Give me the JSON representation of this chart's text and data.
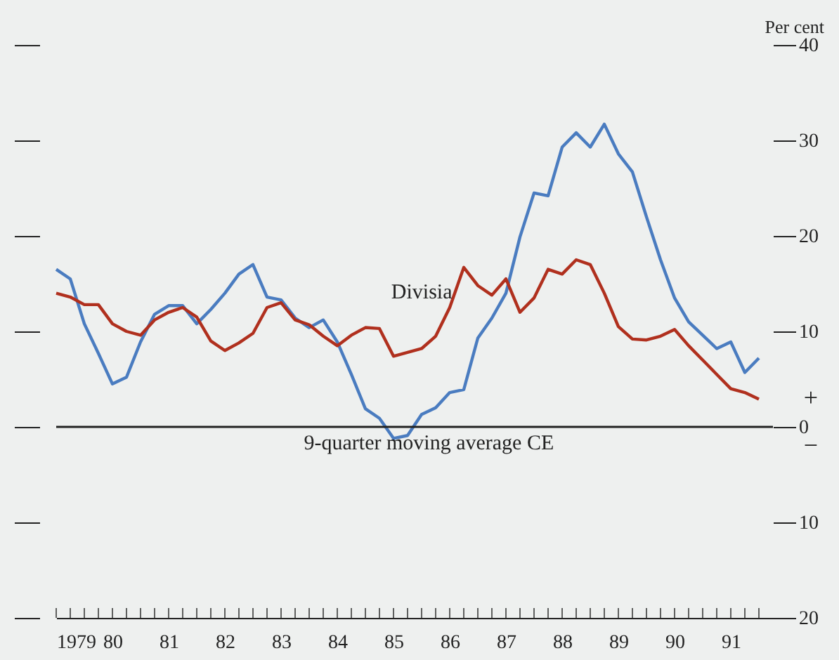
{
  "chart_data": {
    "type": "line",
    "ylabel": "Per cent",
    "x": [
      1979,
      1979.25,
      1979.5,
      1979.75,
      1980,
      1980.25,
      1980.5,
      1980.75,
      1981,
      1981.25,
      1981.5,
      1981.75,
      1982,
      1982.25,
      1982.5,
      1982.75,
      1983,
      1983.25,
      1983.5,
      1983.75,
      1984,
      1984.25,
      1984.5,
      1984.75,
      1985,
      1985.25,
      1985.5,
      1985.75,
      1986,
      1986.25,
      1986.5,
      1986.75,
      1987,
      1987.25,
      1987.5,
      1987.75,
      1988,
      1988.25,
      1988.5,
      1988.75,
      1989,
      1989.25,
      1989.5,
      1989.75,
      1990,
      1990.25,
      1990.5,
      1990.75,
      1991,
      1991.25,
      1991.5
    ],
    "series": [
      {
        "color": "#4a7cc0",
        "values": [
          16.5,
          15.5,
          10.8,
          7.7,
          4.5,
          5.2,
          8.9,
          11.8,
          12.7,
          12.7,
          10.8,
          12.3,
          14,
          16,
          17,
          13.6,
          13.3,
          11.4,
          10.4,
          11.2,
          8.9,
          5.5,
          1.9,
          0.9,
          -1.2,
          -0.9,
          1.3,
          2,
          3.6,
          3.9,
          9.3,
          11.4,
          14,
          19.9,
          24.5,
          24.2,
          29.3,
          30.8,
          29.3,
          31.7,
          28.6,
          26.7,
          22,
          17.5,
          13.5,
          11,
          9.6,
          8.2,
          8.9,
          5.7,
          7.2
        ]
      },
      {
        "color": "#b0301e",
        "values": [
          14,
          13.6,
          12.8,
          12.8,
          10.8,
          10,
          9.6,
          11.2,
          12,
          12.5,
          11.5,
          9,
          8,
          8.8,
          9.8,
          12.5,
          13,
          11.2,
          10.7,
          9.5,
          8.5,
          9.6,
          10.4,
          10.3,
          7.4,
          7.8,
          8.2,
          9.5,
          12.5,
          16.7,
          14.8,
          13.8,
          15.5,
          12,
          13.5,
          16.5,
          16,
          17.5,
          17,
          14,
          10.5,
          9.2,
          9.1,
          9.5,
          10.2,
          8.5,
          7,
          5.5,
          4,
          3.6,
          2.9
        ]
      }
    ],
    "xlim": [
      1979,
      1991.75
    ],
    "xticks": [
      {
        "value": 1979,
        "label": "1979"
      },
      {
        "value": 1979.25,
        "label": null
      },
      {
        "value": 1979.5,
        "label": null
      },
      {
        "value": 1979.75,
        "label": null
      },
      {
        "value": 1980,
        "label": "80"
      },
      {
        "value": 1980.25,
        "label": null
      },
      {
        "value": 1980.5,
        "label": null
      },
      {
        "value": 1980.75,
        "label": null
      },
      {
        "value": 1981,
        "label": "81"
      },
      {
        "value": 1981.25,
        "label": null
      },
      {
        "value": 1981.5,
        "label": null
      },
      {
        "value": 1981.75,
        "label": null
      },
      {
        "value": 1982,
        "label": "82"
      },
      {
        "value": 1982.25,
        "label": null
      },
      {
        "value": 1982.5,
        "label": null
      },
      {
        "value": 1982.75,
        "label": null
      },
      {
        "value": 1983,
        "label": "83"
      },
      {
        "value": 1983.25,
        "label": null
      },
      {
        "value": 1983.5,
        "label": null
      },
      {
        "value": 1983.75,
        "label": null
      },
      {
        "value": 1984,
        "label": "84"
      },
      {
        "value": 1984.25,
        "label": null
      },
      {
        "value": 1984.5,
        "label": null
      },
      {
        "value": 1984.75,
        "label": null
      },
      {
        "value": 1985,
        "label": "85"
      },
      {
        "value": 1985.25,
        "label": null
      },
      {
        "value": 1985.5,
        "label": null
      },
      {
        "value": 1985.75,
        "label": null
      },
      {
        "value": 1986,
        "label": "86"
      },
      {
        "value": 1986.25,
        "label": null
      },
      {
        "value": 1986.5,
        "label": null
      },
      {
        "value": 1986.75,
        "label": null
      },
      {
        "value": 1987,
        "label": "87"
      },
      {
        "value": 1987.25,
        "label": null
      },
      {
        "value": 1987.5,
        "label": null
      },
      {
        "value": 1987.75,
        "label": null
      },
      {
        "value": 1988,
        "label": "88"
      },
      {
        "value": 1988.25,
        "label": null
      },
      {
        "value": 1988.5,
        "label": null
      },
      {
        "value": 1988.75,
        "label": null
      },
      {
        "value": 1989,
        "label": "89"
      },
      {
        "value": 1989.25,
        "label": null
      },
      {
        "value": 1989.5,
        "label": null
      },
      {
        "value": 1989.75,
        "label": null
      },
      {
        "value": 1990,
        "label": "90"
      },
      {
        "value": 1990.25,
        "label": null
      },
      {
        "value": 1990.5,
        "label": null
      },
      {
        "value": 1990.75,
        "label": null
      },
      {
        "value": 1991,
        "label": "91"
      },
      {
        "value": 1991.25,
        "label": null
      },
      {
        "value": 1991.5,
        "label": null
      }
    ],
    "ylim": [
      -20,
      40
    ],
    "yticks": [
      40,
      30,
      20,
      10,
      0,
      {
        "value": -10,
        "label": "10"
      },
      {
        "value": -20,
        "label": "20"
      }
    ],
    "ref_lines": [
      {
        "axis": "y",
        "value": 0,
        "label": "9-quarter moving average CE",
        "color": "#222222"
      }
    ],
    "annotations": [
      "+",
      "−",
      "Divisia"
    ]
  }
}
